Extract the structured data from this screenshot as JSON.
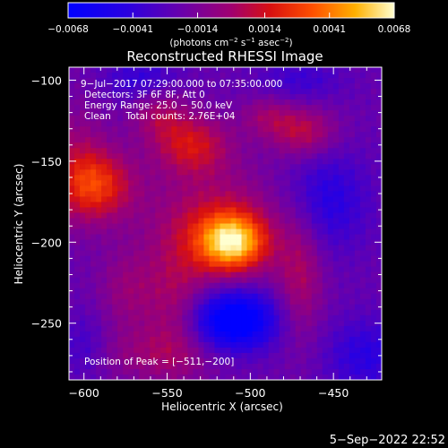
{
  "chart_data": {
    "type": "heatmap",
    "title": "Reconstructed RHESSI Image",
    "xlabel": "Heliocentric X (arcsec)",
    "ylabel": "Heliocentric Y (arcsec)",
    "xlim": [
      -609,
      -421
    ],
    "ylim": [
      -285,
      -92
    ],
    "xticks": [
      -600,
      -550,
      -500,
      -450
    ],
    "xtick_labels": [
      "−600",
      "−550",
      "−500",
      "−450"
    ],
    "yticks": [
      -100,
      -150,
      -200,
      -250
    ],
    "ytick_labels": [
      "−100",
      "−150",
      "−200",
      "−250"
    ],
    "colorbar": {
      "min": -0.0068,
      "max": 0.0068,
      "ticks": [
        -0.0068,
        -0.0041,
        -0.0014,
        0.0014,
        0.0041,
        0.0068
      ],
      "tick_labels": [
        "−0.0068",
        "−0.0041",
        "−0.0014",
        "0.0014",
        "0.0041",
        "0.0068"
      ],
      "units_text": "(photons cm",
      "units_exp1": "−2",
      "units_mid": " s",
      "units_exp2": "−1",
      "units_mid2": " asec",
      "units_exp3": "−2",
      "units_end": ")"
    },
    "sources": [
      {
        "x": -511,
        "y": -200,
        "amp": 0.0068,
        "sx": 14,
        "sy": 12
      },
      {
        "x": -520,
        "y": -190,
        "amp": 0.003,
        "sx": 28,
        "sy": 24
      },
      {
        "x": -592,
        "y": -165,
        "amp": 0.0042,
        "sx": 16,
        "sy": 15
      },
      {
        "x": -605,
        "y": -150,
        "amp": 0.0018,
        "sx": 14,
        "sy": 26
      },
      {
        "x": -535,
        "y": -140,
        "amp": 0.0035,
        "sx": 16,
        "sy": 13
      },
      {
        "x": -555,
        "y": -120,
        "amp": 0.0022,
        "sx": 12,
        "sy": 12
      },
      {
        "x": -468,
        "y": -132,
        "amp": 0.003,
        "sx": 14,
        "sy": 11
      },
      {
        "x": -490,
        "y": -122,
        "amp": 0.0018,
        "sx": 11,
        "sy": 9
      },
      {
        "x": -470,
        "y": -220,
        "amp": 0.0024,
        "sx": 10,
        "sy": 30
      },
      {
        "x": -545,
        "y": -240,
        "amp": 0.0022,
        "sx": 14,
        "sy": 28
      },
      {
        "x": -575,
        "y": -230,
        "amp": 0.0016,
        "sx": 12,
        "sy": 18
      },
      {
        "x": -560,
        "y": -270,
        "amp": 0.0015,
        "sx": 28,
        "sy": 12
      },
      {
        "x": -510,
        "y": -248,
        "amp": -0.006,
        "sx": 18,
        "sy": 13
      },
      {
        "x": -455,
        "y": -175,
        "amp": -0.0025,
        "sx": 18,
        "sy": 22
      },
      {
        "x": -565,
        "y": -100,
        "amp": -0.002,
        "sx": 16,
        "sy": 10
      },
      {
        "x": -430,
        "y": -270,
        "amp": -0.0022,
        "sx": 18,
        "sy": 16
      },
      {
        "x": -600,
        "y": -265,
        "amp": -0.0015,
        "sx": 10,
        "sy": 14
      },
      {
        "x": -470,
        "y": -100,
        "amp": -0.0015,
        "sx": 18,
        "sy": 10
      }
    ],
    "peak": {
      "x": -511,
      "y": -200
    }
  },
  "annotations": {
    "time_range": "9−Jul−2017 07:29:00.000 to 07:35:00.000",
    "detectors": "Detectors: 3F 6F 8F, Att 0",
    "energy": "Energy Range: 25.0 − 50.0 keV",
    "clean": "Clean     Total counts: 2.76E+04",
    "peak_label": "Position of Peak = [−511,−200]"
  },
  "footer": {
    "timestamp": "5−Sep−2022 22:52"
  }
}
